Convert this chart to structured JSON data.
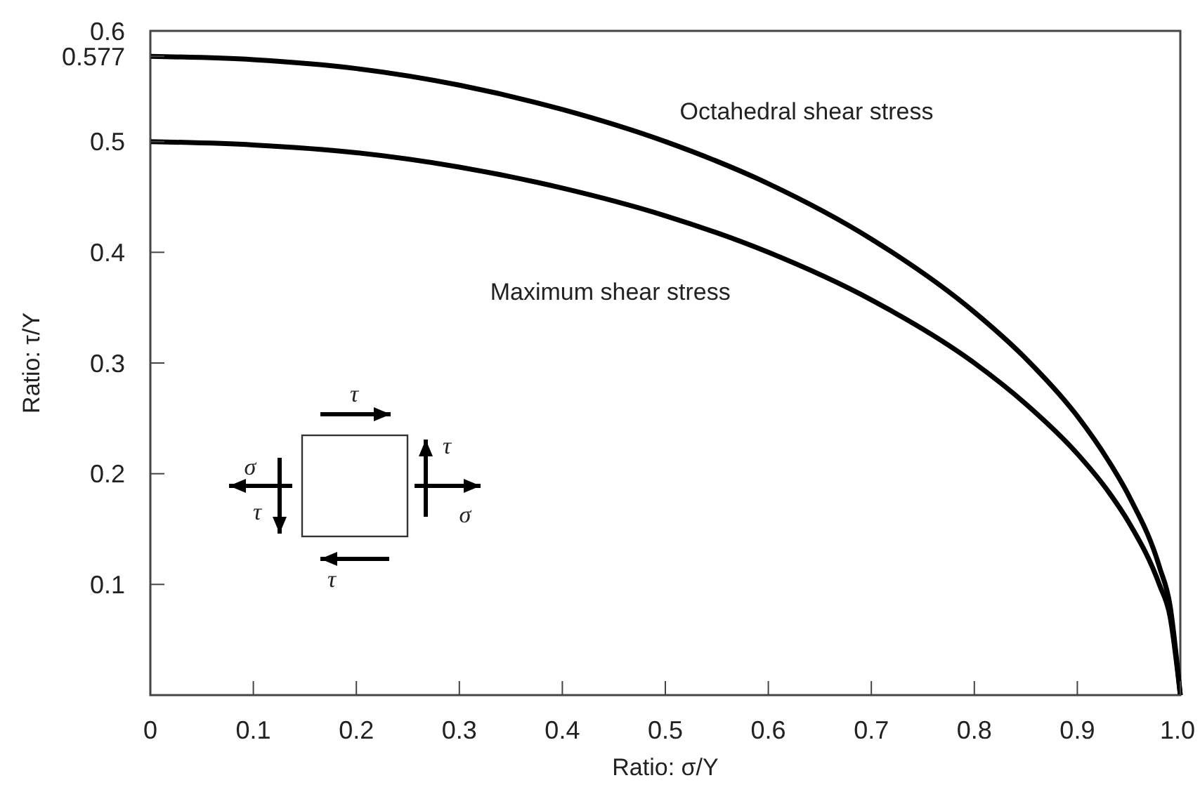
{
  "chart_data": {
    "type": "line",
    "xlabel": "Ratio: σ/Y",
    "ylabel": "Ratio: τ/Y",
    "x": [
      0,
      0.1,
      0.2,
      0.3,
      0.4,
      0.5,
      0.6,
      0.7,
      0.8,
      0.85,
      0.9,
      0.93,
      0.95,
      0.98,
      0.99,
      1.0
    ],
    "series": [
      {
        "name": "Octahedral shear stress",
        "color": "#000000",
        "values": [
          0.577,
          0.574,
          0.566,
          0.551,
          0.529,
          0.5,
          0.462,
          0.412,
          0.346,
          0.304,
          0.252,
          0.212,
          0.18,
          0.115,
          0.081,
          0
        ]
      },
      {
        "name": "Maximum shear stress",
        "color": "#000000",
        "values": [
          0.5,
          0.497,
          0.49,
          0.477,
          0.458,
          0.433,
          0.4,
          0.357,
          0.3,
          0.263,
          0.218,
          0.184,
          0.156,
          0.099,
          0.071,
          0
        ]
      }
    ],
    "xlim": [
      0,
      1.0
    ],
    "ylim": [
      0,
      0.6
    ],
    "xticks": [
      0,
      0.1,
      0.2,
      0.3,
      0.4,
      0.5,
      0.6,
      0.7,
      0.8,
      0.9,
      {
        "value": 1.0,
        "label": "1.0"
      }
    ],
    "yticks": [
      0.1,
      0.2,
      0.3,
      0.4,
      0.5,
      0.577,
      0.6
    ],
    "annotations": [
      "τ",
      "τ",
      "τ",
      "τ",
      "σ",
      "σ"
    ],
    "grid": false,
    "marker": "none",
    "line_style": "solid"
  }
}
